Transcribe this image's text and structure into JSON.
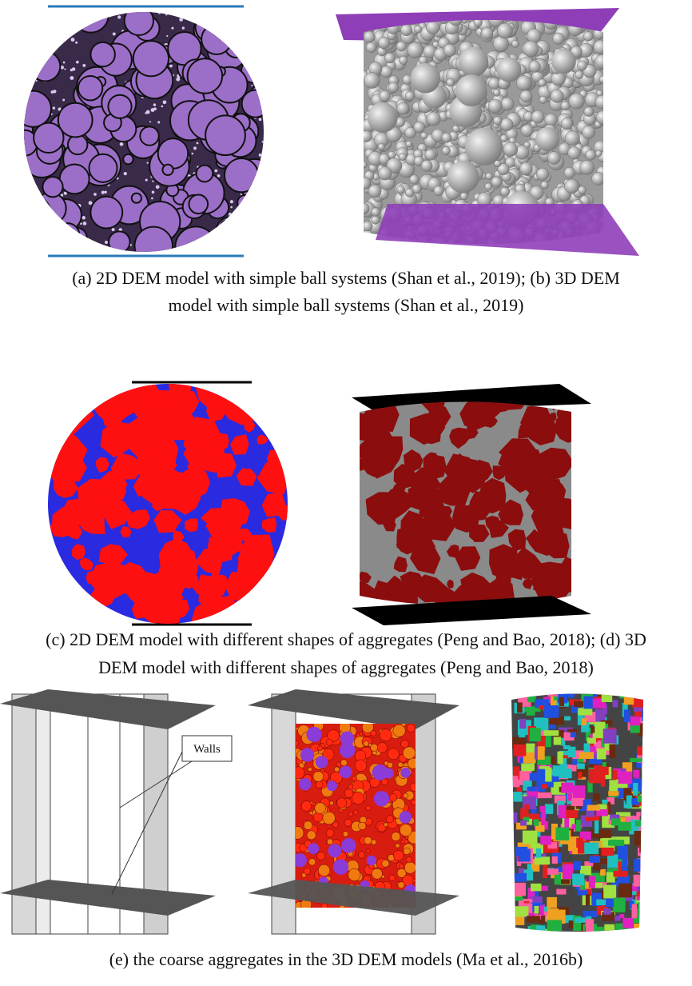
{
  "figures": [
    {
      "caption_lines": [
        "(a) 2D DEM model with simple ball systems (Shan et al., 2019); (b) 3D DEM",
        "model with simple ball systems (Shan et al., 2019)"
      ]
    },
    {
      "caption_lines": [
        "(c) 2D DEM model with different shapes of aggregates (Peng and Bao, 2018); (d) 3D",
        "DEM model with different shapes of aggregates (Peng and Bao, 2018)"
      ]
    },
    {
      "caption_lines": [
        "(e) the coarse aggregates in the 3D DEM models (Ma et al., 2016b)"
      ]
    }
  ],
  "callout": "Walls"
}
